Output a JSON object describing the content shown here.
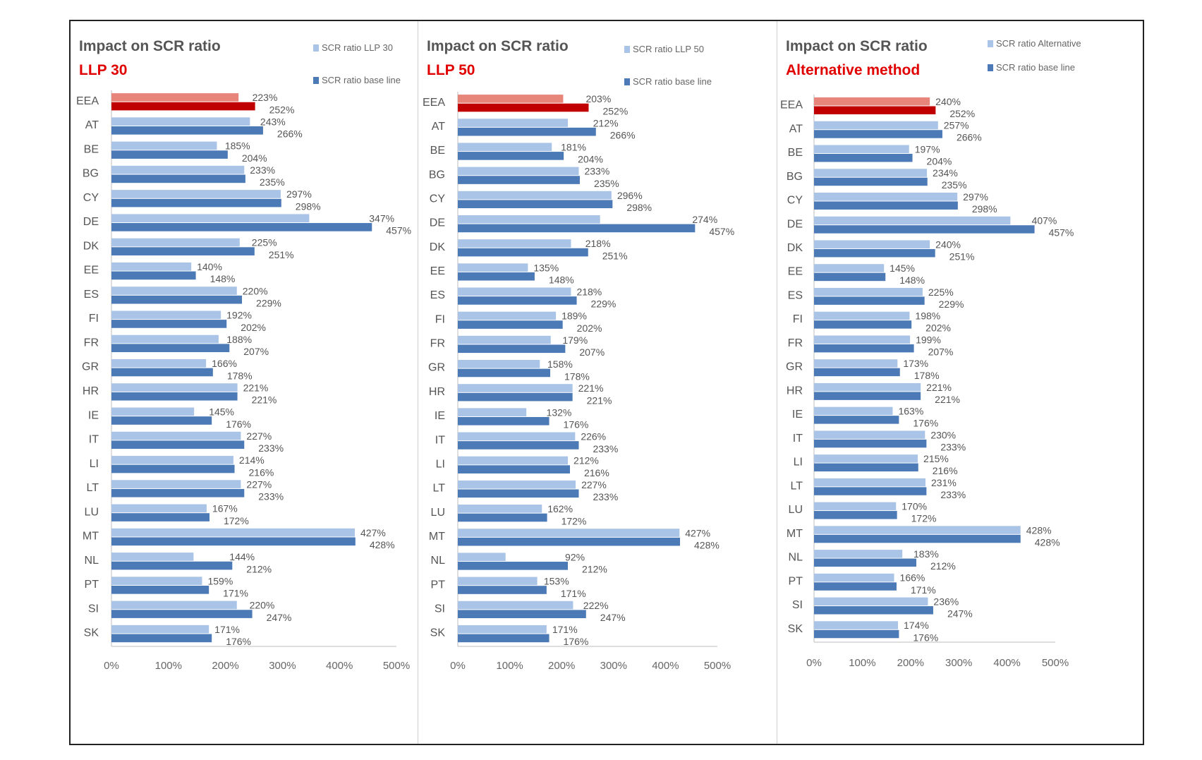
{
  "colors": {
    "alt_bar": "#a9c4e6",
    "base_bar": "#4b7ab6",
    "eea_alt_bar": "#e8857a",
    "eea_base_bar": "#c00000",
    "title_red": "#e00000",
    "text": "#555555"
  },
  "chart_data": [
    {
      "type": "bar",
      "orientation": "horizontal",
      "title": "Impact on SCR ratio",
      "subtitle": "LLP 30",
      "legend": [
        "SCR ratio LLP 30",
        "SCR ratio base line"
      ],
      "categories": [
        "EEA",
        "AT",
        "BE",
        "BG",
        "CY",
        "DE",
        "DK",
        "EE",
        "ES",
        "FI",
        "FR",
        "GR",
        "HR",
        "IE",
        "IT",
        "LI",
        "LT",
        "LU",
        "MT",
        "NL",
        "PT",
        "SI",
        "SK"
      ],
      "series": [
        {
          "name": "SCR ratio LLP 30",
          "values": [
            223,
            243,
            185,
            233,
            297,
            347,
            225,
            140,
            220,
            192,
            188,
            166,
            221,
            145,
            227,
            214,
            227,
            167,
            427,
            144,
            159,
            220,
            171
          ]
        },
        {
          "name": "SCR ratio base line",
          "values": [
            252,
            266,
            204,
            235,
            298,
            457,
            251,
            148,
            229,
            202,
            207,
            178,
            221,
            176,
            233,
            216,
            233,
            172,
            428,
            212,
            171,
            247,
            176
          ]
        }
      ],
      "xlim": [
        0,
        500
      ],
      "xticks": [
        "0%",
        "100%",
        "200%",
        "300%",
        "400%",
        "500%"
      ]
    },
    {
      "type": "bar",
      "orientation": "horizontal",
      "title": "Impact on SCR ratio",
      "subtitle": "LLP 50",
      "legend": [
        "SCR ratio LLP 50",
        "SCR ratio base line"
      ],
      "categories": [
        "EEA",
        "AT",
        "BE",
        "BG",
        "CY",
        "DE",
        "DK",
        "EE",
        "ES",
        "FI",
        "FR",
        "GR",
        "HR",
        "IE",
        "IT",
        "LI",
        "LT",
        "LU",
        "MT",
        "NL",
        "PT",
        "SI",
        "SK"
      ],
      "series": [
        {
          "name": "SCR ratio LLP 50",
          "values": [
            203,
            212,
            181,
            233,
            296,
            274,
            218,
            135,
            218,
            189,
            179,
            158,
            221,
            132,
            226,
            212,
            227,
            162,
            427,
            92,
            153,
            222,
            171
          ]
        },
        {
          "name": "SCR ratio base line",
          "values": [
            252,
            266,
            204,
            235,
            298,
            457,
            251,
            148,
            229,
            202,
            207,
            178,
            221,
            176,
            233,
            216,
            233,
            172,
            428,
            212,
            171,
            247,
            176
          ]
        }
      ],
      "xlim": [
        0,
        500
      ],
      "xticks": [
        "0%",
        "100%",
        "200%",
        "300%",
        "400%",
        "500%"
      ]
    },
    {
      "type": "bar",
      "orientation": "horizontal",
      "title": "Impact on SCR ratio",
      "subtitle": "Alternative method",
      "legend": [
        "SCR ratio Alternative",
        "SCR ratio base line"
      ],
      "categories": [
        "EEA",
        "AT",
        "BE",
        "BG",
        "CY",
        "DE",
        "DK",
        "EE",
        "ES",
        "FI",
        "FR",
        "GR",
        "HR",
        "IE",
        "IT",
        "LI",
        "LT",
        "LU",
        "MT",
        "NL",
        "PT",
        "SI",
        "SK"
      ],
      "series": [
        {
          "name": "SCR ratio Alternative",
          "values": [
            240,
            257,
            197,
            234,
            297,
            407,
            240,
            145,
            225,
            198,
            199,
            173,
            221,
            163,
            230,
            215,
            231,
            170,
            428,
            183,
            166,
            236,
            174
          ]
        },
        {
          "name": "SCR ratio base line",
          "values": [
            252,
            266,
            204,
            235,
            298,
            457,
            251,
            148,
            229,
            202,
            207,
            178,
            221,
            176,
            233,
            216,
            233,
            172,
            428,
            212,
            171,
            247,
            176
          ]
        }
      ],
      "xlim": [
        0,
        500
      ],
      "xticks": [
        "0%",
        "100%",
        "200%",
        "300%",
        "400%",
        "500%"
      ]
    }
  ]
}
